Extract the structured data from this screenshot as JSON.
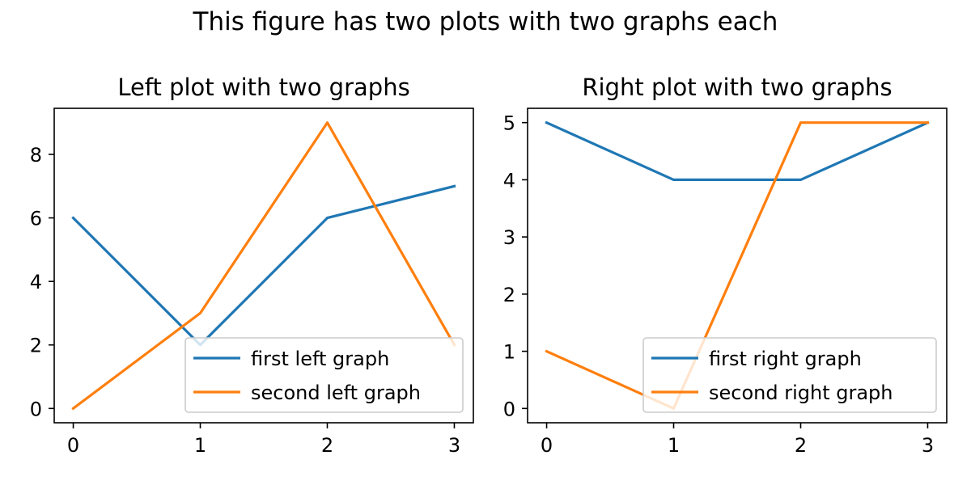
{
  "figure": {
    "suptitle": "This figure has two plots with two graphs each"
  },
  "colors": {
    "series1": "#1f77b4",
    "series2": "#ff7f0e",
    "axes": "#000000",
    "legend_border": "#cccccc"
  },
  "chart_data": [
    {
      "type": "line",
      "title": "Left plot with two graphs",
      "xlabel": "",
      "ylabel": "",
      "x": [
        0,
        1,
        2,
        3
      ],
      "xlim": [
        -0.15,
        3.15
      ],
      "ylim": [
        -0.45,
        9.45
      ],
      "xticks": [
        0,
        1,
        2,
        3
      ],
      "yticks": [
        0,
        2,
        4,
        6,
        8
      ],
      "grid": false,
      "legend_position": "lower-right",
      "series": [
        {
          "name": "first left graph",
          "values": [
            6,
            2,
            6,
            7
          ]
        },
        {
          "name": "second left graph",
          "values": [
            0,
            3,
            9,
            2
          ]
        }
      ]
    },
    {
      "type": "line",
      "title": "Right plot with two graphs",
      "xlabel": "",
      "ylabel": "",
      "x": [
        0,
        1,
        2,
        3
      ],
      "xlim": [
        -0.15,
        3.15
      ],
      "ylim": [
        -0.25,
        5.25
      ],
      "xticks": [
        0,
        1,
        2,
        3
      ],
      "yticks": [
        0,
        1,
        2,
        3,
        4,
        5
      ],
      "grid": false,
      "legend_position": "lower-right",
      "series": [
        {
          "name": "first right graph",
          "values": [
            5,
            4,
            4,
            5
          ]
        },
        {
          "name": "second right graph",
          "values": [
            1,
            0,
            5,
            5
          ]
        }
      ]
    }
  ]
}
